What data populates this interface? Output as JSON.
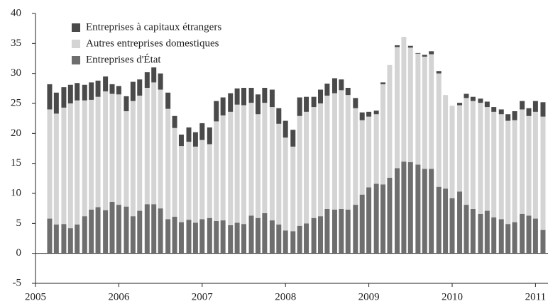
{
  "chart_data": {
    "type": "stacked_bar",
    "x": [
      2005.17,
      2005.25,
      2005.34,
      2005.42,
      2005.5,
      2005.59,
      2005.67,
      2005.75,
      2005.84,
      2005.92,
      2006,
      2006.09,
      2006.17,
      2006.25,
      2006.34,
      2006.42,
      2006.5,
      2006.59,
      2006.67,
      2006.75,
      2006.84,
      2006.92,
      2007,
      2007.09,
      2007.17,
      2007.25,
      2007.34,
      2007.42,
      2007.5,
      2007.59,
      2007.67,
      2007.75,
      2007.84,
      2007.92,
      2008,
      2008.09,
      2008.17,
      2008.25,
      2008.34,
      2008.42,
      2008.5,
      2008.59,
      2008.67,
      2008.75,
      2008.84,
      2008.92,
      2009,
      2009.09,
      2009.17,
      2009.25,
      2009.34,
      2009.42,
      2009.5,
      2009.59,
      2009.67,
      2009.75,
      2009.84,
      2009.92,
      2010,
      2010.09,
      2010.17,
      2010.25,
      2010.34,
      2010.42,
      2010.5,
      2010.59,
      2010.67,
      2010.75,
      2010.84,
      2010.92,
      2011,
      2011.09
    ],
    "series": [
      {
        "name": "Entreprises d'État",
        "color": "#6e6e6e",
        "values": [
          5.8,
          4.8,
          4.9,
          4.2,
          4.8,
          6.2,
          7.3,
          7.7,
          7.2,
          8.6,
          8.1,
          7.8,
          6.2,
          7.1,
          8.2,
          8.2,
          7.5,
          5.7,
          6.1,
          5.2,
          5.6,
          5.1,
          5.7,
          5.9,
          5.4,
          5.5,
          4.7,
          5.1,
          4.9,
          6.3,
          5.9,
          6.7,
          5.5,
          4.8,
          3.8,
          3.7,
          4.6,
          5,
          5.9,
          6.2,
          7.4,
          7.3,
          7.4,
          7.3,
          8.1,
          9.8,
          11,
          11.6,
          11.5,
          12.6,
          14.2,
          15.3,
          15.2,
          14.8,
          14.1,
          14.1,
          11.1,
          10.8,
          9.2,
          10.3,
          8.1,
          7.4,
          6.6,
          7.1,
          6,
          5.7,
          4.9,
          5.2,
          6.6,
          6.3,
          5.8,
          3.9
        ]
      },
      {
        "name": "Autres entreprises domestiques",
        "color": "#d4d4d4",
        "values": [
          18.2,
          18.5,
          19.4,
          20.8,
          20.7,
          19.3,
          18.3,
          18.4,
          19.8,
          18,
          18.4,
          15.9,
          19.2,
          19.2,
          19.4,
          20.3,
          19.8,
          18.4,
          14.8,
          12.7,
          13,
          12.7,
          13.2,
          12.3,
          16.6,
          17.5,
          18.9,
          19.7,
          19.8,
          18.8,
          17.3,
          18.4,
          18.9,
          16.8,
          15.5,
          14.1,
          18.3,
          18.6,
          18.5,
          18.8,
          18.9,
          19.4,
          19.8,
          19.1,
          16.1,
          12.4,
          11.8,
          11.6,
          16.7,
          18.8,
          20.2,
          20.8,
          19.1,
          18.5,
          18.7,
          19.1,
          18.9,
          15.6,
          15.4,
          14.4,
          17.8,
          18,
          18.5,
          17.3,
          17.6,
          17.5,
          17.2,
          17,
          17.4,
          16.6,
          17.8,
          18.9
        ]
      },
      {
        "name": "Entreprises à capitaux étrangers",
        "color": "#4a4a4a",
        "values": [
          4.2,
          3.5,
          3.4,
          3.1,
          2.9,
          2.6,
          2.9,
          2.7,
          2.5,
          1.6,
          1.4,
          2.5,
          3.2,
          2.7,
          2.6,
          2.5,
          2.7,
          2.7,
          2,
          1.9,
          2.4,
          2.4,
          2.8,
          2.8,
          3.4,
          3,
          3.1,
          2.7,
          2.9,
          2.5,
          3.3,
          2.5,
          2.9,
          2.6,
          2.8,
          2.8,
          3.1,
          2.5,
          1.7,
          2.3,
          2,
          2.5,
          1.8,
          1.2,
          1.7,
          1.3,
          0.8,
          0.6,
          0.3,
          0,
          0.3,
          0,
          0.3,
          0.1,
          0.3,
          0.5,
          0.4,
          0,
          0,
          0.4,
          0.7,
          0.7,
          0.7,
          0.9,
          0.8,
          0.8,
          1.1,
          1.5,
          1.4,
          1.3,
          1.8,
          2.4
        ]
      }
    ],
    "xlim": [
      2005,
      2011.15
    ],
    "xticks": [
      2005,
      2006,
      2007,
      2008,
      2009,
      2010,
      2011
    ],
    "ylim": [
      -5,
      40
    ],
    "yticks": [
      -5,
      0,
      5,
      10,
      15,
      20,
      25,
      30,
      35,
      40
    ],
    "legend": "upper left"
  }
}
